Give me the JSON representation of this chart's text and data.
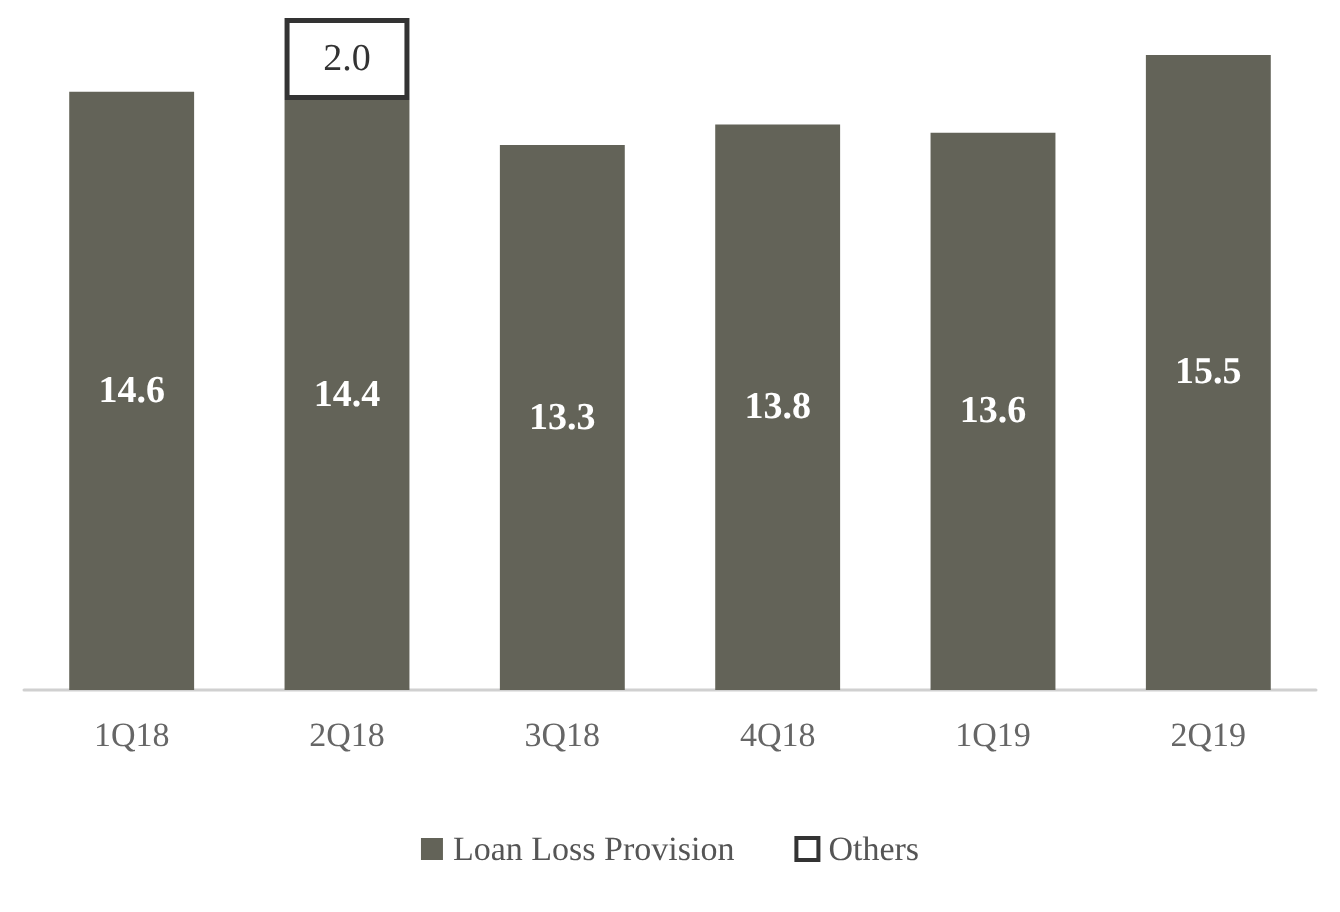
{
  "chart_data": {
    "type": "bar",
    "stacked": true,
    "categories": [
      "1Q18",
      "2Q18",
      "3Q18",
      "4Q18",
      "1Q19",
      "2Q19"
    ],
    "series": [
      {
        "name": "Loan Loss Provision",
        "color": "#636358",
        "values": [
          14.6,
          14.4,
          13.3,
          13.8,
          13.6,
          15.5
        ],
        "value_labels": [
          "14.6",
          "14.4",
          "13.3",
          "13.8",
          "13.6",
          "15.5"
        ]
      },
      {
        "name": "Others",
        "color": "#ffffff",
        "values": [
          null,
          2.0,
          null,
          null,
          null,
          null
        ],
        "value_labels": [
          null,
          "2.0",
          null,
          null,
          null,
          null
        ]
      }
    ],
    "legend": "bottom"
  }
}
